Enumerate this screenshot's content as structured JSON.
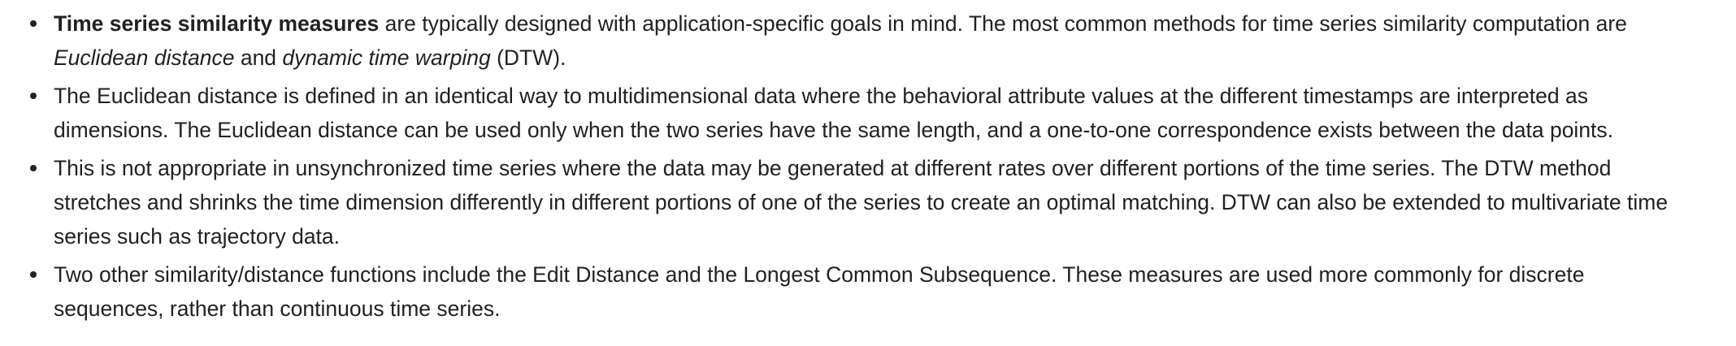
{
  "bullets": [
    {
      "bold_term": "Time series similarity measures",
      "text_a": " are typically designed with application-specific goals in mind. The most common methods for time series similarity computation are ",
      "italic_1": "Euclidean distance",
      "text_b": " and ",
      "italic_2": "dynamic time warping",
      "text_c": " (DTW)."
    },
    {
      "text": "The Euclidean distance is defined in an identical way to multidimensional data where the behavioral attribute values at the different timestamps are interpreted as dimensions. The Euclidean distance can be used only when the two series have the same length, and a one-to-one correspondence exists between the data points."
    },
    {
      "text": "This is not appropriate in unsynchronized time series where the data may be generated at different rates over different portions of the time series. The DTW method stretches and shrinks the time dimension differently in different portions of one of the series to create an optimal matching. DTW can also be extended to multivariate time series such as trajectory data."
    },
    {
      "text": "Two other similarity/distance functions include the Edit Distance and the Longest Common Subsequence. These measures are used more commonly for discrete sequences, rather than continuous time series."
    }
  ]
}
